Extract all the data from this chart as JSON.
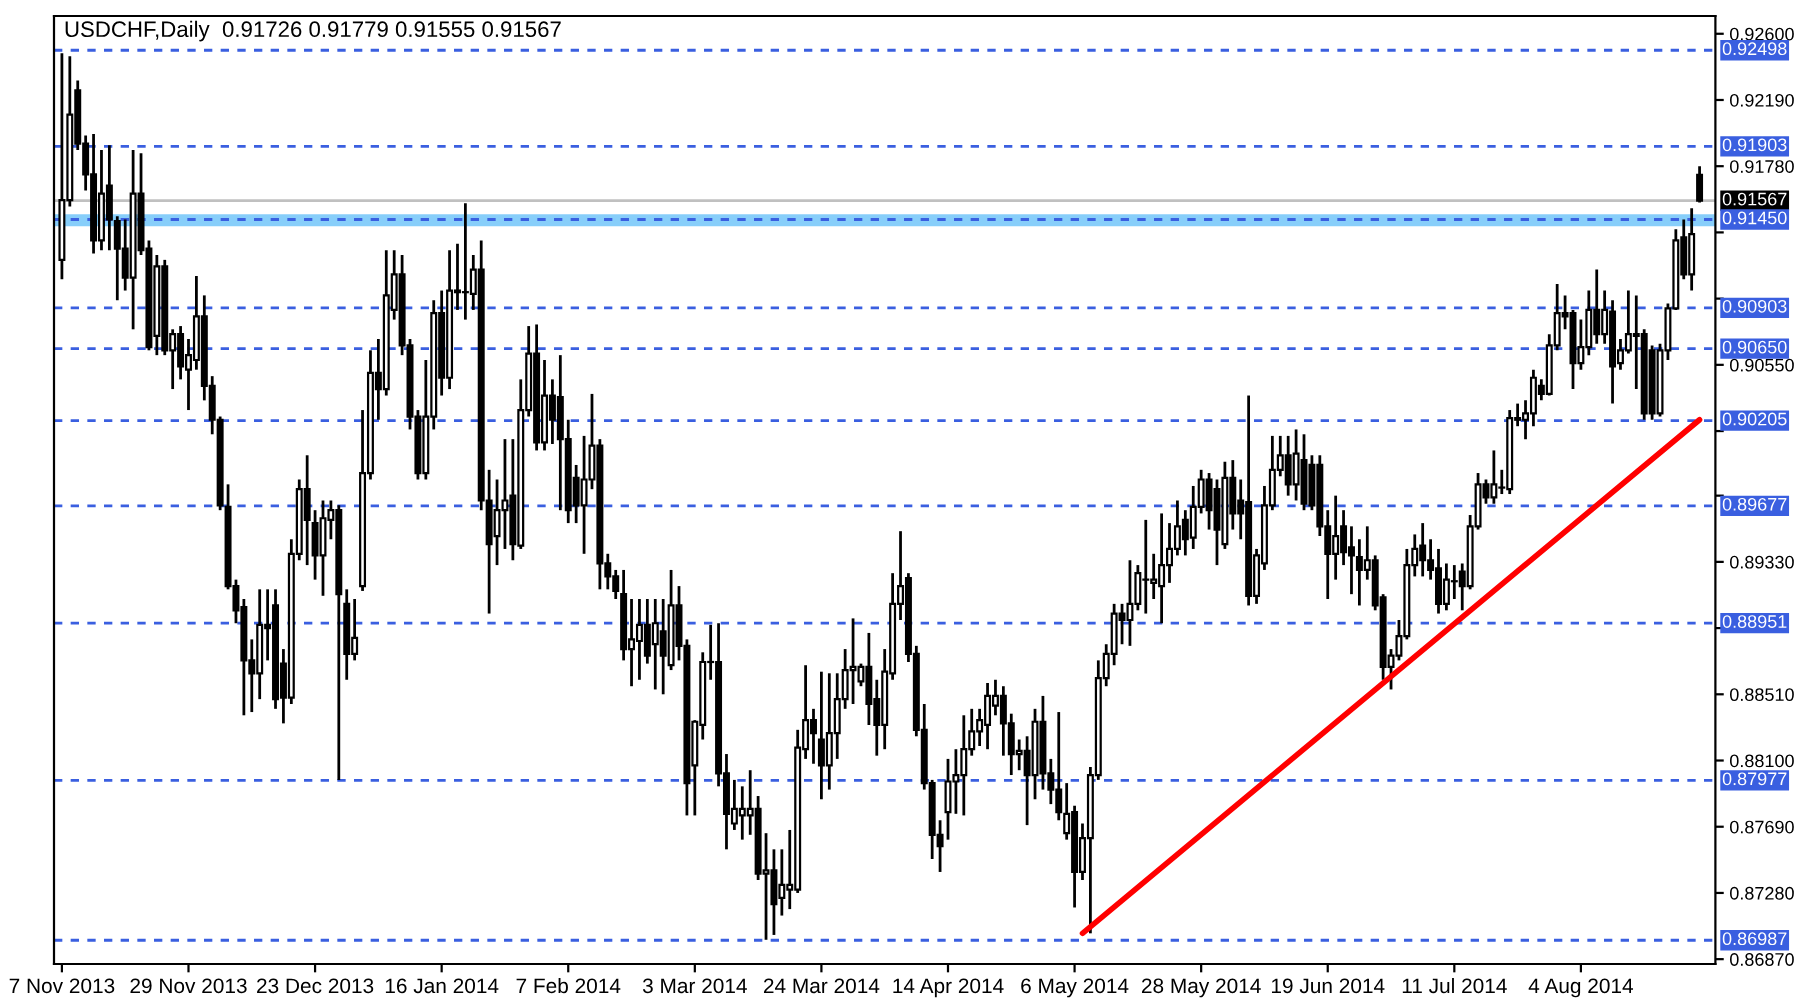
{
  "chart_data": {
    "type": "candlestick",
    "title": "USDCHF,Daily  0.91726 0.91779 0.91555 0.91567",
    "color": "#000000",
    "categories": [
      "7 Nov 2013",
      null,
      null,
      null,
      null,
      null,
      null,
      null,
      null,
      null,
      null,
      null,
      null,
      null,
      null,
      null,
      "29 Nov 2013",
      null,
      null,
      null,
      null,
      null,
      null,
      null,
      null,
      null,
      null,
      null,
      null,
      null,
      null,
      null,
      "23 Dec 2013",
      null,
      null,
      null,
      null,
      null,
      null,
      null,
      null,
      null,
      null,
      null,
      null,
      null,
      null,
      null,
      "16 Jan 2014",
      null,
      null,
      null,
      null,
      null,
      null,
      null,
      null,
      null,
      null,
      null,
      null,
      null,
      null,
      null,
      "7 Feb 2014",
      null,
      null,
      null,
      null,
      null,
      null,
      null,
      null,
      null,
      null,
      null,
      null,
      null,
      null,
      null,
      "3 Mar 2014",
      null,
      null,
      null,
      null,
      null,
      null,
      null,
      null,
      null,
      null,
      null,
      null,
      null,
      null,
      null,
      "24 Mar 2014",
      null,
      null,
      null,
      null,
      null,
      null,
      null,
      null,
      null,
      null,
      null,
      null,
      null,
      null,
      null,
      "14 Apr 2014",
      null,
      null,
      null,
      null,
      null,
      null,
      null,
      null,
      null,
      null,
      null,
      null,
      null,
      null,
      null,
      "6 May 2014",
      null,
      null,
      null,
      null,
      null,
      null,
      null,
      null,
      null,
      null,
      null,
      null,
      null,
      null,
      null,
      "28 May 2014",
      null,
      null,
      null,
      null,
      null,
      null,
      null,
      null,
      null,
      null,
      null,
      null,
      null,
      null,
      null,
      "19 Jun 2014",
      null,
      null,
      null,
      null,
      null,
      null,
      null,
      null,
      null,
      null,
      null,
      null,
      null,
      null,
      null,
      "11 Jul 2014",
      null,
      null,
      null,
      null,
      null,
      null,
      null,
      null,
      null,
      null,
      null,
      null,
      null,
      null,
      null,
      "4 Aug 2014",
      null,
      null,
      null,
      null,
      null,
      null,
      null,
      null,
      null,
      null,
      null,
      null,
      null,
      null,
      null
    ],
    "ohlc": [
      [
        0.912,
        0.9248,
        0.9108,
        0.9157
      ],
      [
        0.9157,
        0.9246,
        0.9153,
        0.921
      ],
      [
        0.9225,
        0.9231,
        0.9188,
        0.9192
      ],
      [
        0.9192,
        0.9197,
        0.9163,
        0.9173
      ],
      [
        0.9173,
        0.9198,
        0.9124,
        0.9132
      ],
      [
        0.9132,
        0.9188,
        0.9126,
        0.9161
      ],
      [
        0.9166,
        0.9191,
        0.9126,
        0.9145
      ],
      [
        0.9144,
        0.9147,
        0.9095,
        0.9127
      ],
      [
        0.9127,
        0.9145,
        0.9101,
        0.9109
      ],
      [
        0.9109,
        0.9188,
        0.9077,
        0.9161
      ],
      [
        0.9161,
        0.9186,
        0.9123,
        0.9126
      ],
      [
        0.9127,
        0.9132,
        0.9064,
        0.9066
      ],
      [
        0.9073,
        0.9123,
        0.9061,
        0.9116
      ],
      [
        0.9116,
        0.912,
        0.9061,
        0.9064
      ],
      [
        0.9064,
        0.9077,
        0.904,
        0.9074
      ],
      [
        0.9074,
        0.9079,
        0.9046,
        0.9054
      ],
      [
        0.9052,
        0.9071,
        0.9027,
        0.9061
      ],
      [
        0.9058,
        0.911,
        0.9052,
        0.9085
      ],
      [
        0.9085,
        0.9098,
        0.9033,
        0.9042
      ],
      [
        0.9042,
        0.9048,
        0.9012,
        0.9021
      ],
      [
        0.9021,
        0.9023,
        0.8965,
        0.8968
      ],
      [
        0.8967,
        0.8981,
        0.8916,
        0.8918
      ],
      [
        0.8918,
        0.8922,
        0.8895,
        0.8903
      ],
      [
        0.8905,
        0.891,
        0.8838,
        0.8872
      ],
      [
        0.8872,
        0.8885,
        0.884,
        0.8864
      ],
      [
        0.8864,
        0.8916,
        0.8848,
        0.8894
      ],
      [
        0.8894,
        0.8916,
        0.8872,
        0.8892
      ],
      [
        0.8906,
        0.8916,
        0.8842,
        0.8848
      ],
      [
        0.887,
        0.8879,
        0.8833,
        0.8849
      ],
      [
        0.8849,
        0.8947,
        0.8845,
        0.8938
      ],
      [
        0.8938,
        0.8984,
        0.8934,
        0.8978
      ],
      [
        0.8978,
        0.8999,
        0.8931,
        0.8959
      ],
      [
        0.8957,
        0.8965,
        0.8922,
        0.8937
      ],
      [
        0.8937,
        0.8971,
        0.8912,
        0.896
      ],
      [
        0.8959,
        0.8971,
        0.8947,
        0.8965
      ],
      [
        0.8965,
        0.8968,
        0.8798,
        0.8913
      ],
      [
        0.8907,
        0.8916,
        0.886,
        0.8876
      ],
      [
        0.8876,
        0.891,
        0.8872,
        0.8886
      ],
      [
        0.8918,
        0.9027,
        0.8915,
        0.8988
      ],
      [
        0.8988,
        0.9064,
        0.8984,
        0.905
      ],
      [
        0.905,
        0.9071,
        0.9021,
        0.904
      ],
      [
        0.904,
        0.9126,
        0.9036,
        0.9098
      ],
      [
        0.9089,
        0.9126,
        0.9083,
        0.9111
      ],
      [
        0.9111,
        0.9123,
        0.9061,
        0.9067
      ],
      [
        0.9067,
        0.9071,
        0.9015,
        0.9023
      ],
      [
        0.9023,
        0.9027,
        0.8984,
        0.8988
      ],
      [
        0.8988,
        0.9058,
        0.8984,
        0.9023
      ],
      [
        0.9023,
        0.9095,
        0.9015,
        0.9087
      ],
      [
        0.9087,
        0.9101,
        0.9036,
        0.9047
      ],
      [
        0.9047,
        0.9126,
        0.904,
        0.9101
      ],
      [
        0.9101,
        0.913,
        0.9089,
        0.91
      ],
      [
        0.91,
        0.9155,
        0.9083,
        0.91
      ],
      [
        0.9099,
        0.9123,
        0.9089,
        0.9114
      ],
      [
        0.9114,
        0.9132,
        0.8965,
        0.8971
      ],
      [
        0.8971,
        0.899,
        0.8901,
        0.8944
      ],
      [
        0.8949,
        0.8984,
        0.8931,
        0.8965
      ],
      [
        0.8965,
        0.9009,
        0.8941,
        0.8971
      ],
      [
        0.8974,
        0.9009,
        0.8934,
        0.8944
      ],
      [
        0.8943,
        0.9046,
        0.8941,
        0.9027
      ],
      [
        0.9027,
        0.9079,
        0.9023,
        0.9062
      ],
      [
        0.9062,
        0.908,
        0.9002,
        0.9007
      ],
      [
        0.9007,
        0.9058,
        0.9002,
        0.9036
      ],
      [
        0.9036,
        0.9046,
        0.9006,
        0.9021
      ],
      [
        0.9035,
        0.9061,
        0.8965,
        0.9009
      ],
      [
        0.9009,
        0.9021,
        0.8957,
        0.8965
      ],
      [
        0.8985,
        0.8993,
        0.8957,
        0.8968
      ],
      [
        0.8968,
        0.9011,
        0.8938,
        0.8984
      ],
      [
        0.8984,
        0.9037,
        0.8978,
        0.9005
      ],
      [
        0.9005,
        0.9009,
        0.8916,
        0.8932
      ],
      [
        0.8932,
        0.8938,
        0.8916,
        0.8924
      ],
      [
        0.8924,
        0.8928,
        0.891,
        0.8915
      ],
      [
        0.8913,
        0.8928,
        0.8872,
        0.8879
      ],
      [
        0.8879,
        0.891,
        0.8856,
        0.8885
      ],
      [
        0.8884,
        0.891,
        0.886,
        0.8894
      ],
      [
        0.8894,
        0.891,
        0.887,
        0.8875
      ],
      [
        0.8882,
        0.891,
        0.8854,
        0.8895
      ],
      [
        0.889,
        0.891,
        0.8851,
        0.8875
      ],
      [
        0.8869,
        0.8928,
        0.8866,
        0.8906
      ],
      [
        0.8906,
        0.8918,
        0.8872,
        0.8881
      ],
      [
        0.8881,
        0.8885,
        0.8776,
        0.8796
      ],
      [
        0.8807,
        0.8835,
        0.8776,
        0.8834
      ],
      [
        0.8832,
        0.8877,
        0.8823,
        0.8871
      ],
      [
        0.8871,
        0.8894,
        0.886,
        0.8871
      ],
      [
        0.8871,
        0.8895,
        0.8794,
        0.8802
      ],
      [
        0.8802,
        0.8814,
        0.8755,
        0.8777
      ],
      [
        0.8771,
        0.8798,
        0.8767,
        0.878
      ],
      [
        0.8776,
        0.8794,
        0.8761,
        0.878
      ],
      [
        0.8776,
        0.8804,
        0.8764,
        0.878
      ],
      [
        0.878,
        0.8788,
        0.8736,
        0.874
      ],
      [
        0.874,
        0.8765,
        0.8699,
        0.8742
      ],
      [
        0.8742,
        0.8755,
        0.8702,
        0.8721
      ],
      [
        0.8725,
        0.8755,
        0.8714,
        0.8733
      ],
      [
        0.873,
        0.8767,
        0.8718,
        0.8733
      ],
      [
        0.873,
        0.8829,
        0.8728,
        0.8818
      ],
      [
        0.8817,
        0.8869,
        0.8811,
        0.8835
      ],
      [
        0.8835,
        0.8842,
        0.8808,
        0.8827
      ],
      [
        0.8823,
        0.8865,
        0.8786,
        0.8807
      ],
      [
        0.8807,
        0.8864,
        0.8792,
        0.8827
      ],
      [
        0.8827,
        0.8864,
        0.8811,
        0.8848
      ],
      [
        0.8848,
        0.8879,
        0.8842,
        0.8866
      ],
      [
        0.8866,
        0.8898,
        0.8845,
        0.8868
      ],
      [
        0.8859,
        0.887,
        0.8856,
        0.8868
      ],
      [
        0.8868,
        0.8889,
        0.8832,
        0.8845
      ],
      [
        0.8848,
        0.886,
        0.8813,
        0.8832
      ],
      [
        0.8832,
        0.8879,
        0.8817,
        0.8865
      ],
      [
        0.8864,
        0.8926,
        0.886,
        0.8907
      ],
      [
        0.8907,
        0.8952,
        0.8897,
        0.8918
      ],
      [
        0.8923,
        0.8926,
        0.8871,
        0.8876
      ],
      [
        0.8876,
        0.8881,
        0.8825,
        0.8829
      ],
      [
        0.8829,
        0.8845,
        0.8792,
        0.8796
      ],
      [
        0.8796,
        0.8798,
        0.8749,
        0.8764
      ],
      [
        0.8764,
        0.8773,
        0.8741,
        0.8757
      ],
      [
        0.8778,
        0.8811,
        0.8761,
        0.8797
      ],
      [
        0.8797,
        0.8817,
        0.8777,
        0.8801
      ],
      [
        0.8801,
        0.8838,
        0.8776,
        0.8817
      ],
      [
        0.8817,
        0.8842,
        0.8813,
        0.8828
      ],
      [
        0.8828,
        0.8842,
        0.8819,
        0.8835
      ],
      [
        0.8832,
        0.8858,
        0.8817,
        0.885
      ],
      [
        0.8844,
        0.886,
        0.8838,
        0.885
      ],
      [
        0.885,
        0.8856,
        0.8813,
        0.8833
      ],
      [
        0.8833,
        0.8839,
        0.8801,
        0.8814
      ],
      [
        0.8814,
        0.8823,
        0.8804,
        0.8816
      ],
      [
        0.8816,
        0.8825,
        0.877,
        0.8801
      ],
      [
        0.8801,
        0.8842,
        0.8786,
        0.8834
      ],
      [
        0.8834,
        0.885,
        0.8792,
        0.8802
      ],
      [
        0.8802,
        0.8811,
        0.8783,
        0.8792
      ],
      [
        0.8792,
        0.884,
        0.8773,
        0.8778
      ],
      [
        0.8765,
        0.8796,
        0.8761,
        0.8777
      ],
      [
        0.8778,
        0.8782,
        0.8719,
        0.8741
      ],
      [
        0.8741,
        0.8771,
        0.8736,
        0.8762
      ],
      [
        0.8762,
        0.8806,
        0.8703,
        0.8801
      ],
      [
        0.8801,
        0.8872,
        0.8798,
        0.8861
      ],
      [
        0.8861,
        0.8882,
        0.8856,
        0.8876
      ],
      [
        0.8876,
        0.8907,
        0.8869,
        0.8901
      ],
      [
        0.8901,
        0.8907,
        0.8882,
        0.8897
      ],
      [
        0.8897,
        0.8934,
        0.8881,
        0.8907
      ],
      [
        0.8907,
        0.8931,
        0.8903,
        0.8926
      ],
      [
        0.8922,
        0.8959,
        0.8901,
        0.8922
      ],
      [
        0.892,
        0.8938,
        0.891,
        0.8922
      ],
      [
        0.8918,
        0.8963,
        0.8895,
        0.8931
      ],
      [
        0.8931,
        0.8957,
        0.892,
        0.8941
      ],
      [
        0.8941,
        0.8971,
        0.8937,
        0.8955
      ],
      [
        0.8959,
        0.8965,
        0.8937,
        0.8947
      ],
      [
        0.8948,
        0.898,
        0.8941,
        0.8967
      ],
      [
        0.8967,
        0.899,
        0.8963,
        0.8984
      ],
      [
        0.8984,
        0.8988,
        0.8953,
        0.8965
      ],
      [
        0.8978,
        0.8984,
        0.8931,
        0.8953
      ],
      [
        0.8944,
        0.8995,
        0.8941,
        0.8985
      ],
      [
        0.8985,
        0.8996,
        0.8953,
        0.8963
      ],
      [
        0.8971,
        0.8984,
        0.8947,
        0.8963
      ],
      [
        0.897,
        0.9036,
        0.8906,
        0.8912
      ],
      [
        0.8912,
        0.8941,
        0.8907,
        0.8937
      ],
      [
        0.8932,
        0.898,
        0.8928,
        0.8968
      ],
      [
        0.8968,
        0.9011,
        0.8965,
        0.899
      ],
      [
        0.899,
        0.9011,
        0.8986,
        0.8999
      ],
      [
        0.8999,
        0.9011,
        0.8974,
        0.8981
      ],
      [
        0.8981,
        0.9015,
        0.8971,
        0.9
      ],
      [
        0.8996,
        0.9012,
        0.8965,
        0.8969
      ],
      [
        0.8993,
        0.8999,
        0.8965,
        0.8968
      ],
      [
        0.8993,
        0.8999,
        0.8949,
        0.8955
      ],
      [
        0.8955,
        0.8965,
        0.891,
        0.8938
      ],
      [
        0.8938,
        0.8974,
        0.8922,
        0.8949
      ],
      [
        0.8955,
        0.8965,
        0.8931,
        0.8939
      ],
      [
        0.8942,
        0.8955,
        0.8913,
        0.8937
      ],
      [
        0.8936,
        0.8947,
        0.8906,
        0.8928
      ],
      [
        0.8928,
        0.8955,
        0.8922,
        0.8934
      ],
      [
        0.8934,
        0.8937,
        0.8903,
        0.8906
      ],
      [
        0.8911,
        0.8913,
        0.886,
        0.8868
      ],
      [
        0.8868,
        0.8879,
        0.8854,
        0.8875
      ],
      [
        0.8875,
        0.8897,
        0.8872,
        0.8887
      ],
      [
        0.8887,
        0.8941,
        0.8885,
        0.8931
      ],
      [
        0.8931,
        0.895,
        0.8924,
        0.8941
      ],
      [
        0.8943,
        0.8957,
        0.8924,
        0.8934
      ],
      [
        0.8934,
        0.8947,
        0.8922,
        0.8928
      ],
      [
        0.8929,
        0.8941,
        0.8901,
        0.8907
      ],
      [
        0.8907,
        0.8932,
        0.8903,
        0.8922
      ],
      [
        0.8921,
        0.8931,
        0.891,
        0.8921
      ],
      [
        0.8927,
        0.8932,
        0.8903,
        0.8918
      ],
      [
        0.8918,
        0.8962,
        0.8916,
        0.8955
      ],
      [
        0.8955,
        0.8988,
        0.8953,
        0.8981
      ],
      [
        0.8981,
        0.8984,
        0.8969,
        0.8973
      ],
      [
        0.8973,
        0.9002,
        0.8969,
        0.8981
      ],
      [
        0.8979,
        0.899,
        0.8975,
        0.8979
      ],
      [
        0.8978,
        0.9027,
        0.8975,
        0.9022
      ],
      [
        0.9022,
        0.9031,
        0.9017,
        0.9021
      ],
      [
        0.9021,
        0.9033,
        0.9009,
        0.9025
      ],
      [
        0.9025,
        0.9052,
        0.9017,
        0.9047
      ],
      [
        0.9042,
        0.9046,
        0.9033,
        0.9037
      ],
      [
        0.9037,
        0.9074,
        0.9036,
        0.9067
      ],
      [
        0.9067,
        0.9105,
        0.9064,
        0.9087
      ],
      [
        0.9087,
        0.9098,
        0.9077,
        0.9085
      ],
      [
        0.9087,
        0.9089,
        0.904,
        0.9056
      ],
      [
        0.9056,
        0.9083,
        0.9052,
        0.9066
      ],
      [
        0.9066,
        0.9101,
        0.9061,
        0.9089
      ],
      [
        0.9089,
        0.9114,
        0.9068,
        0.9074
      ],
      [
        0.9074,
        0.9101,
        0.9068,
        0.9089
      ],
      [
        0.9088,
        0.9095,
        0.9031,
        0.9054
      ],
      [
        0.9056,
        0.9071,
        0.9052,
        0.9064
      ],
      [
        0.9064,
        0.9101,
        0.9062,
        0.9074
      ],
      [
        0.9074,
        0.9098,
        0.904,
        0.9073
      ],
      [
        0.9074,
        0.9077,
        0.9021,
        0.9025
      ],
      [
        0.9064,
        0.9067,
        0.9021,
        0.9025
      ],
      [
        0.9025,
        0.9068,
        0.9023,
        0.9064
      ],
      [
        0.9064,
        0.9093,
        0.9058,
        0.909
      ],
      [
        0.909,
        0.9139,
        0.9089,
        0.9132
      ],
      [
        0.9134,
        0.9145,
        0.9108,
        0.9111
      ],
      [
        0.9111,
        0.9152,
        0.9101,
        0.9136
      ],
      [
        0.91726,
        0.91779,
        0.91555,
        0.91567
      ]
    ],
    "series": [
      {
        "type": "line",
        "color": "#ff0000",
        "values": [
          null,
          null,
          null,
          null,
          null,
          null,
          null,
          null,
          null,
          null,
          null,
          null,
          null,
          null,
          null,
          null,
          null,
          null,
          null,
          null,
          null,
          null,
          null,
          null,
          null,
          null,
          null,
          null,
          null,
          null,
          null,
          null,
          null,
          null,
          null,
          null,
          null,
          null,
          null,
          null,
          null,
          null,
          null,
          null,
          null,
          null,
          null,
          null,
          null,
          null,
          null,
          null,
          null,
          null,
          null,
          null,
          null,
          null,
          null,
          null,
          null,
          null,
          null,
          null,
          null,
          null,
          null,
          null,
          null,
          null,
          null,
          null,
          null,
          null,
          null,
          null,
          null,
          null,
          null,
          null,
          null,
          null,
          null,
          null,
          null,
          null,
          null,
          null,
          null,
          null,
          null,
          null,
          null,
          null,
          null,
          null,
          null,
          null,
          null,
          null,
          null,
          null,
          null,
          null,
          null,
          null,
          null,
          null,
          null,
          null,
          null,
          null,
          null,
          null,
          null,
          null,
          null,
          null,
          null,
          null,
          null,
          null,
          null,
          null,
          null,
          null,
          null,
          null,
          null,
          0.8703,
          null,
          null,
          null,
          null,
          null,
          null,
          null,
          null,
          null,
          null,
          null,
          null,
          null,
          null,
          null,
          null,
          null,
          null,
          null,
          null,
          null,
          null,
          null,
          null,
          null,
          null,
          null,
          null,
          null,
          null,
          null,
          null,
          null,
          null,
          null,
          null,
          null,
          null,
          null,
          null,
          null,
          null,
          null,
          null,
          null,
          null,
          null,
          null,
          null,
          null,
          null,
          null,
          null,
          null,
          null,
          null,
          null,
          null,
          null,
          null,
          null,
          null,
          null,
          null,
          null,
          null,
          null,
          null,
          null,
          null,
          null,
          null,
          null,
          null,
          null,
          null,
          null,
          0.9021
        ]
      }
    ],
    "ylim": [
      0.8684,
      0.9271
    ],
    "yticks": [
      {
        "value": 0.926,
        "label": "0.92600"
      },
      {
        "value": 0.9219,
        "label": "0.92190"
      },
      {
        "value": 0.9178,
        "label": "0.91780"
      },
      {
        "value": 0.9137,
        "label": null
      },
      {
        "value": 0.9096,
        "label": null
      },
      {
        "value": 0.9055,
        "label": "0.90550"
      },
      {
        "value": 0.9014,
        "label": null
      },
      {
        "value": 0.8974,
        "label": null
      },
      {
        "value": 0.8933,
        "label": "0.89330"
      },
      {
        "value": 0.8892,
        "label": null
      },
      {
        "value": 0.8851,
        "label": "0.88510"
      },
      {
        "value": 0.881,
        "label": "0.88100"
      },
      {
        "value": 0.8769,
        "label": "0.87690"
      },
      {
        "value": 0.8728,
        "label": "0.87280"
      },
      {
        "value": 0.8687,
        "label": "0.86870"
      }
    ],
    "ref_lines": [
      {
        "axis": "y",
        "value": 0.92498,
        "label": "0.92498",
        "color": "#3a5fe0",
        "line_style": "dashed"
      },
      {
        "axis": "y",
        "value": 0.91903,
        "label": "0.91903",
        "color": "#3a5fe0",
        "line_style": "dashed"
      },
      {
        "axis": "y",
        "value": 0.91567,
        "label": "0.91567",
        "color": "#c0c0c0",
        "line_style": "solid"
      },
      {
        "axis": "y",
        "value": 0.9145,
        "label": "0.91450",
        "color": "#3a5fe0",
        "line_style": "dashed"
      },
      {
        "axis": "y",
        "value": 0.90903,
        "label": "0.90903",
        "color": "#3a5fe0",
        "line_style": "dashed"
      },
      {
        "axis": "y",
        "value": 0.9065,
        "label": "0.90650",
        "color": "#3a5fe0",
        "line_style": "dashed"
      },
      {
        "axis": "y",
        "value": 0.90205,
        "label": "0.90205",
        "color": "#3a5fe0",
        "line_style": "dashed"
      },
      {
        "axis": "y",
        "value": 0.89677,
        "label": "0.89677",
        "color": "#3a5fe0",
        "line_style": "dashed"
      },
      {
        "axis": "y",
        "value": 0.88951,
        "label": "0.88951",
        "color": "#3a5fe0",
        "line_style": "dashed"
      },
      {
        "axis": "y",
        "value": 0.87977,
        "label": "0.87977",
        "color": "#3a5fe0",
        "line_style": "dashed"
      },
      {
        "axis": "y",
        "value": 0.86987,
        "label": "0.86987",
        "color": "#3a5fe0",
        "line_style": "dashed"
      }
    ],
    "bands": [
      {
        "axis": "y",
        "from": 0.91408,
        "to": 0.91483,
        "color": "#87cefa"
      }
    ],
    "grid": false,
    "legend": false
  }
}
